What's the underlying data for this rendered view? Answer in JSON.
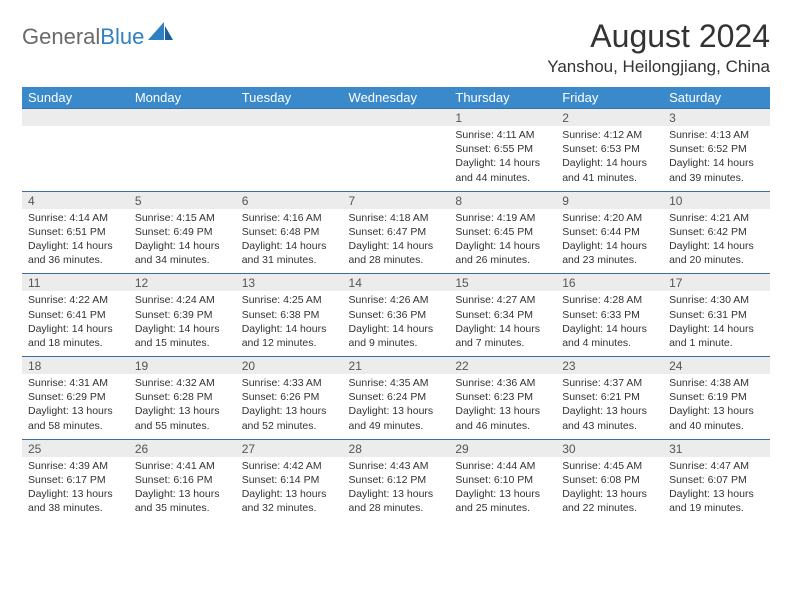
{
  "brand": {
    "part1": "General",
    "part2": "Blue"
  },
  "title": "August 2024",
  "location": "Yanshou, Heilongjiang, China",
  "colors": {
    "header_bg": "#3a8acb",
    "header_text": "#ffffff",
    "row_border": "#3a6fa6",
    "daynum_bg": "#ececec",
    "daynum_text": "#555555",
    "body_text": "#333333",
    "brand_gray": "#6a6a6a",
    "brand_blue": "#2f7fc2"
  },
  "weekdays": [
    "Sunday",
    "Monday",
    "Tuesday",
    "Wednesday",
    "Thursday",
    "Friday",
    "Saturday"
  ],
  "weeks": [
    [
      {
        "n": "",
        "sr": "",
        "ss": "",
        "dl": ""
      },
      {
        "n": "",
        "sr": "",
        "ss": "",
        "dl": ""
      },
      {
        "n": "",
        "sr": "",
        "ss": "",
        "dl": ""
      },
      {
        "n": "",
        "sr": "",
        "ss": "",
        "dl": ""
      },
      {
        "n": "1",
        "sr": "Sunrise: 4:11 AM",
        "ss": "Sunset: 6:55 PM",
        "dl": "Daylight: 14 hours and 44 minutes."
      },
      {
        "n": "2",
        "sr": "Sunrise: 4:12 AM",
        "ss": "Sunset: 6:53 PM",
        "dl": "Daylight: 14 hours and 41 minutes."
      },
      {
        "n": "3",
        "sr": "Sunrise: 4:13 AM",
        "ss": "Sunset: 6:52 PM",
        "dl": "Daylight: 14 hours and 39 minutes."
      }
    ],
    [
      {
        "n": "4",
        "sr": "Sunrise: 4:14 AM",
        "ss": "Sunset: 6:51 PM",
        "dl": "Daylight: 14 hours and 36 minutes."
      },
      {
        "n": "5",
        "sr": "Sunrise: 4:15 AM",
        "ss": "Sunset: 6:49 PM",
        "dl": "Daylight: 14 hours and 34 minutes."
      },
      {
        "n": "6",
        "sr": "Sunrise: 4:16 AM",
        "ss": "Sunset: 6:48 PM",
        "dl": "Daylight: 14 hours and 31 minutes."
      },
      {
        "n": "7",
        "sr": "Sunrise: 4:18 AM",
        "ss": "Sunset: 6:47 PM",
        "dl": "Daylight: 14 hours and 28 minutes."
      },
      {
        "n": "8",
        "sr": "Sunrise: 4:19 AM",
        "ss": "Sunset: 6:45 PM",
        "dl": "Daylight: 14 hours and 26 minutes."
      },
      {
        "n": "9",
        "sr": "Sunrise: 4:20 AM",
        "ss": "Sunset: 6:44 PM",
        "dl": "Daylight: 14 hours and 23 minutes."
      },
      {
        "n": "10",
        "sr": "Sunrise: 4:21 AM",
        "ss": "Sunset: 6:42 PM",
        "dl": "Daylight: 14 hours and 20 minutes."
      }
    ],
    [
      {
        "n": "11",
        "sr": "Sunrise: 4:22 AM",
        "ss": "Sunset: 6:41 PM",
        "dl": "Daylight: 14 hours and 18 minutes."
      },
      {
        "n": "12",
        "sr": "Sunrise: 4:24 AM",
        "ss": "Sunset: 6:39 PM",
        "dl": "Daylight: 14 hours and 15 minutes."
      },
      {
        "n": "13",
        "sr": "Sunrise: 4:25 AM",
        "ss": "Sunset: 6:38 PM",
        "dl": "Daylight: 14 hours and 12 minutes."
      },
      {
        "n": "14",
        "sr": "Sunrise: 4:26 AM",
        "ss": "Sunset: 6:36 PM",
        "dl": "Daylight: 14 hours and 9 minutes."
      },
      {
        "n": "15",
        "sr": "Sunrise: 4:27 AM",
        "ss": "Sunset: 6:34 PM",
        "dl": "Daylight: 14 hours and 7 minutes."
      },
      {
        "n": "16",
        "sr": "Sunrise: 4:28 AM",
        "ss": "Sunset: 6:33 PM",
        "dl": "Daylight: 14 hours and 4 minutes."
      },
      {
        "n": "17",
        "sr": "Sunrise: 4:30 AM",
        "ss": "Sunset: 6:31 PM",
        "dl": "Daylight: 14 hours and 1 minute."
      }
    ],
    [
      {
        "n": "18",
        "sr": "Sunrise: 4:31 AM",
        "ss": "Sunset: 6:29 PM",
        "dl": "Daylight: 13 hours and 58 minutes."
      },
      {
        "n": "19",
        "sr": "Sunrise: 4:32 AM",
        "ss": "Sunset: 6:28 PM",
        "dl": "Daylight: 13 hours and 55 minutes."
      },
      {
        "n": "20",
        "sr": "Sunrise: 4:33 AM",
        "ss": "Sunset: 6:26 PM",
        "dl": "Daylight: 13 hours and 52 minutes."
      },
      {
        "n": "21",
        "sr": "Sunrise: 4:35 AM",
        "ss": "Sunset: 6:24 PM",
        "dl": "Daylight: 13 hours and 49 minutes."
      },
      {
        "n": "22",
        "sr": "Sunrise: 4:36 AM",
        "ss": "Sunset: 6:23 PM",
        "dl": "Daylight: 13 hours and 46 minutes."
      },
      {
        "n": "23",
        "sr": "Sunrise: 4:37 AM",
        "ss": "Sunset: 6:21 PM",
        "dl": "Daylight: 13 hours and 43 minutes."
      },
      {
        "n": "24",
        "sr": "Sunrise: 4:38 AM",
        "ss": "Sunset: 6:19 PM",
        "dl": "Daylight: 13 hours and 40 minutes."
      }
    ],
    [
      {
        "n": "25",
        "sr": "Sunrise: 4:39 AM",
        "ss": "Sunset: 6:17 PM",
        "dl": "Daylight: 13 hours and 38 minutes."
      },
      {
        "n": "26",
        "sr": "Sunrise: 4:41 AM",
        "ss": "Sunset: 6:16 PM",
        "dl": "Daylight: 13 hours and 35 minutes."
      },
      {
        "n": "27",
        "sr": "Sunrise: 4:42 AM",
        "ss": "Sunset: 6:14 PM",
        "dl": "Daylight: 13 hours and 32 minutes."
      },
      {
        "n": "28",
        "sr": "Sunrise: 4:43 AM",
        "ss": "Sunset: 6:12 PM",
        "dl": "Daylight: 13 hours and 28 minutes."
      },
      {
        "n": "29",
        "sr": "Sunrise: 4:44 AM",
        "ss": "Sunset: 6:10 PM",
        "dl": "Daylight: 13 hours and 25 minutes."
      },
      {
        "n": "30",
        "sr": "Sunrise: 4:45 AM",
        "ss": "Sunset: 6:08 PM",
        "dl": "Daylight: 13 hours and 22 minutes."
      },
      {
        "n": "31",
        "sr": "Sunrise: 4:47 AM",
        "ss": "Sunset: 6:07 PM",
        "dl": "Daylight: 13 hours and 19 minutes."
      }
    ]
  ]
}
